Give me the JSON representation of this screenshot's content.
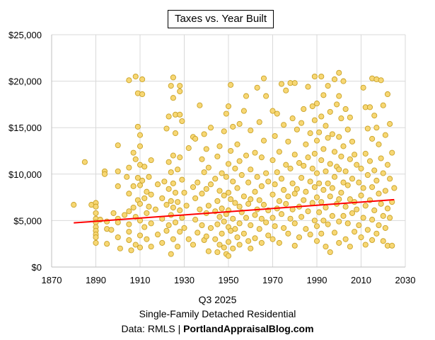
{
  "chart_data": {
    "type": "scatter",
    "title": "Taxes vs. Year Built",
    "xlabel": "",
    "ylabel": "",
    "xlim": [
      1870,
      2030
    ],
    "ylim": [
      0,
      25000
    ],
    "x_ticks": [
      "1870",
      "1890",
      "1910",
      "1930",
      "1950",
      "1970",
      "1990",
      "2010",
      "2030"
    ],
    "y_ticks": [
      "$0",
      "$5,000",
      "$10,000",
      "$15,000",
      "$20,000",
      "$25,000"
    ],
    "grid": true,
    "legend": "none",
    "marker_color": "#F7D774",
    "marker_edge": "#C9A227",
    "trendline": {
      "type": "linear",
      "color": "#FF0000",
      "x": [
        1880,
        2025
      ],
      "y": [
        4750,
        7250
      ]
    },
    "points": [
      [
        1880,
        6700
      ],
      [
        1885,
        11300
      ],
      [
        1888,
        6700
      ],
      [
        1890,
        6900
      ],
      [
        1890,
        6500
      ],
      [
        1890,
        5800
      ],
      [
        1890,
        5200
      ],
      [
        1890,
        4800
      ],
      [
        1890,
        4300
      ],
      [
        1890,
        3900
      ],
      [
        1890,
        3500
      ],
      [
        1890,
        3200
      ],
      [
        1890,
        2600
      ],
      [
        1892,
        5100
      ],
      [
        1894,
        10300
      ],
      [
        1894,
        10000
      ],
      [
        1895,
        4900
      ],
      [
        1895,
        4100
      ],
      [
        1895,
        2500
      ],
      [
        1897,
        4000
      ],
      [
        1898,
        5800
      ],
      [
        1900,
        13100
      ],
      [
        1900,
        10300
      ],
      [
        1900,
        8700
      ],
      [
        1900,
        5200
      ],
      [
        1900,
        4800
      ],
      [
        1900,
        3200
      ],
      [
        1901,
        2000
      ],
      [
        1903,
        5600
      ],
      [
        1904,
        9700
      ],
      [
        1905,
        20100
      ],
      [
        1905,
        10700
      ],
      [
        1905,
        7900
      ],
      [
        1905,
        6000
      ],
      [
        1905,
        4600
      ],
      [
        1905,
        3800
      ],
      [
        1905,
        2900
      ],
      [
        1906,
        1800
      ],
      [
        1907,
        12300
      ],
      [
        1907,
        8700
      ],
      [
        1907,
        6400
      ],
      [
        1908,
        20500
      ],
      [
        1908,
        11600
      ],
      [
        1908,
        5400
      ],
      [
        1908,
        2400
      ],
      [
        1909,
        18700
      ],
      [
        1909,
        15100
      ],
      [
        1909,
        9600
      ],
      [
        1909,
        7200
      ],
      [
        1910,
        14200
      ],
      [
        1910,
        13000
      ],
      [
        1910,
        11000
      ],
      [
        1910,
        8800
      ],
      [
        1910,
        6800
      ],
      [
        1910,
        5000
      ],
      [
        1910,
        3400
      ],
      [
        1910,
        2100
      ],
      [
        1911,
        18600
      ],
      [
        1911,
        20200
      ],
      [
        1911,
        9300
      ],
      [
        1912,
        10800
      ],
      [
        1912,
        7400
      ],
      [
        1912,
        4300
      ],
      [
        1913,
        8100
      ],
      [
        1913,
        5800
      ],
      [
        1913,
        3000
      ],
      [
        1914,
        9700
      ],
      [
        1914,
        6500
      ],
      [
        1915,
        11500
      ],
      [
        1915,
        7800
      ],
      [
        1915,
        4700
      ],
      [
        1915,
        2200
      ],
      [
        1917,
        6200
      ],
      [
        1918,
        8900
      ],
      [
        1918,
        3500
      ],
      [
        1920,
        7400
      ],
      [
        1920,
        5200
      ],
      [
        1920,
        2600
      ],
      [
        1921,
        9200
      ],
      [
        1922,
        14900
      ],
      [
        1922,
        6700
      ],
      [
        1922,
        3900
      ],
      [
        1923,
        16200
      ],
      [
        1923,
        11300
      ],
      [
        1923,
        8400
      ],
      [
        1923,
        4500
      ],
      [
        1924,
        19500
      ],
      [
        1924,
        10200
      ],
      [
        1924,
        7100
      ],
      [
        1924,
        5600
      ],
      [
        1924,
        1400
      ],
      [
        1925,
        18200
      ],
      [
        1925,
        20400
      ],
      [
        1925,
        12000
      ],
      [
        1925,
        9000
      ],
      [
        1925,
        6400
      ],
      [
        1925,
        3000
      ],
      [
        1926,
        16400
      ],
      [
        1926,
        14400
      ],
      [
        1926,
        8000
      ],
      [
        1926,
        4800
      ],
      [
        1927,
        10500
      ],
      [
        1927,
        7000
      ],
      [
        1927,
        2200
      ],
      [
        1928,
        19500
      ],
      [
        1928,
        18900
      ],
      [
        1928,
        16400
      ],
      [
        1928,
        11800
      ],
      [
        1928,
        6100
      ],
      [
        1928,
        3800
      ],
      [
        1929,
        15700
      ],
      [
        1929,
        9400
      ],
      [
        1929,
        5300
      ],
      [
        1930,
        8000
      ],
      [
        1930,
        4200
      ],
      [
        1931,
        6600
      ],
      [
        1932,
        12800
      ],
      [
        1932,
        3000
      ],
      [
        1934,
        14000
      ],
      [
        1934,
        8600
      ],
      [
        1934,
        2400
      ],
      [
        1935,
        13800
      ],
      [
        1935,
        7400
      ],
      [
        1935,
        5100
      ],
      [
        1936,
        9100
      ],
      [
        1936,
        3700
      ],
      [
        1937,
        17400
      ],
      [
        1937,
        6200
      ],
      [
        1938,
        11600
      ],
      [
        1938,
        7900
      ],
      [
        1938,
        4500
      ],
      [
        1939,
        14300
      ],
      [
        1939,
        10200
      ],
      [
        1939,
        2900
      ],
      [
        1940,
        12700
      ],
      [
        1940,
        8400
      ],
      [
        1940,
        5800
      ],
      [
        1940,
        3300
      ],
      [
        1941,
        10700
      ],
      [
        1941,
        6600
      ],
      [
        1941,
        1700
      ],
      [
        1942,
        15000
      ],
      [
        1942,
        8900
      ],
      [
        1942,
        4200
      ],
      [
        1944,
        9500
      ],
      [
        1944,
        6000
      ],
      [
        1944,
        3000
      ],
      [
        1945,
        11900
      ],
      [
        1945,
        7100
      ],
      [
        1945,
        4600
      ],
      [
        1945,
        1600
      ],
      [
        1946,
        13000
      ],
      [
        1946,
        8200
      ],
      [
        1946,
        5400
      ],
      [
        1946,
        2400
      ],
      [
        1947,
        10100
      ],
      [
        1947,
        6300
      ],
      [
        1947,
        3600
      ],
      [
        1948,
        14600
      ],
      [
        1948,
        7700
      ],
      [
        1948,
        4900
      ],
      [
        1948,
        2100
      ],
      [
        1949,
        16500
      ],
      [
        1949,
        9700
      ],
      [
        1949,
        5700
      ],
      [
        1949,
        1400
      ],
      [
        1950,
        17300
      ],
      [
        1950,
        11100
      ],
      [
        1950,
        8000
      ],
      [
        1950,
        6100
      ],
      [
        1950,
        4300
      ],
      [
        1950,
        2700
      ],
      [
        1950,
        1200
      ],
      [
        1951,
        19600
      ],
      [
        1951,
        12500
      ],
      [
        1951,
        7300
      ],
      [
        1951,
        3900
      ],
      [
        1952,
        15100
      ],
      [
        1952,
        9200
      ],
      [
        1952,
        5200
      ],
      [
        1952,
        2000
      ],
      [
        1953,
        10600
      ],
      [
        1953,
        6900
      ],
      [
        1953,
        4100
      ],
      [
        1954,
        13200
      ],
      [
        1954,
        8500
      ],
      [
        1954,
        3200
      ],
      [
        1955,
        15400
      ],
      [
        1955,
        11400
      ],
      [
        1955,
        6500
      ],
      [
        1955,
        4700
      ],
      [
        1955,
        2400
      ],
      [
        1956,
        9900
      ],
      [
        1956,
        5900
      ],
      [
        1957,
        16800
      ],
      [
        1957,
        7600
      ],
      [
        1957,
        3600
      ],
      [
        1958,
        18400
      ],
      [
        1958,
        12000
      ],
      [
        1958,
        5300
      ],
      [
        1959,
        9100
      ],
      [
        1959,
        6800
      ],
      [
        1959,
        2800
      ],
      [
        1960,
        14700
      ],
      [
        1960,
        10500
      ],
      [
        1960,
        7300
      ],
      [
        1960,
        4500
      ],
      [
        1960,
        2000
      ],
      [
        1962,
        12300
      ],
      [
        1962,
        8100
      ],
      [
        1962,
        5600
      ],
      [
        1962,
        3100
      ],
      [
        1963,
        19300
      ],
      [
        1963,
        9700
      ],
      [
        1963,
        6200
      ],
      [
        1964,
        15600
      ],
      [
        1964,
        7200
      ],
      [
        1964,
        4100
      ],
      [
        1965,
        11800
      ],
      [
        1965,
        8700
      ],
      [
        1965,
        5200
      ],
      [
        1965,
        2600
      ],
      [
        1966,
        20300
      ],
      [
        1966,
        13600
      ],
      [
        1966,
        6700
      ],
      [
        1967,
        18400
      ],
      [
        1967,
        10100
      ],
      [
        1967,
        4800
      ],
      [
        1968,
        9200
      ],
      [
        1968,
        6100
      ],
      [
        1968,
        3400
      ],
      [
        1970,
        16800
      ],
      [
        1970,
        11500
      ],
      [
        1970,
        7800
      ],
      [
        1970,
        5300
      ],
      [
        1970,
        3000
      ],
      [
        1971,
        14100
      ],
      [
        1971,
        8900
      ],
      [
        1971,
        4400
      ],
      [
        1972,
        16500
      ],
      [
        1972,
        10200
      ],
      [
        1972,
        6300
      ],
      [
        1973,
        12400
      ],
      [
        1973,
        7100
      ],
      [
        1973,
        2600
      ],
      [
        1974,
        19700
      ],
      [
        1974,
        9500
      ],
      [
        1974,
        5700
      ],
      [
        1975,
        15300
      ],
      [
        1975,
        8300
      ],
      [
        1975,
        4200
      ],
      [
        1976,
        19000
      ],
      [
        1976,
        11000
      ],
      [
        1976,
        6800
      ],
      [
        1977,
        13500
      ],
      [
        1977,
        7600
      ],
      [
        1977,
        3600
      ],
      [
        1978,
        19800
      ],
      [
        1978,
        10600
      ],
      [
        1978,
        5200
      ],
      [
        1979,
        16000
      ],
      [
        1979,
        9000
      ],
      [
        1979,
        6200
      ],
      [
        1980,
        19800
      ],
      [
        1980,
        12100
      ],
      [
        1980,
        7900
      ],
      [
        1980,
        4700
      ],
      [
        1980,
        2300
      ],
      [
        1981,
        14800
      ],
      [
        1981,
        8400
      ],
      [
        1982,
        11200
      ],
      [
        1982,
        6500
      ],
      [
        1982,
        3200
      ],
      [
        1983,
        15500
      ],
      [
        1983,
        9600
      ],
      [
        1983,
        5400
      ],
      [
        1984,
        17000
      ],
      [
        1984,
        10900
      ],
      [
        1984,
        7200
      ],
      [
        1985,
        13200
      ],
      [
        1985,
        8100
      ],
      [
        1985,
        4100
      ],
      [
        1986,
        19400
      ],
      [
        1986,
        11800
      ],
      [
        1986,
        6000
      ],
      [
        1987,
        14400
      ],
      [
        1987,
        9200
      ],
      [
        1987,
        3500
      ],
      [
        1988,
        17300
      ],
      [
        1988,
        10600
      ],
      [
        1988,
        6900
      ],
      [
        1989,
        20500
      ],
      [
        1989,
        15800
      ],
      [
        1989,
        12200
      ],
      [
        1989,
        8600
      ],
      [
        1989,
        5000
      ],
      [
        1990,
        17600
      ],
      [
        1990,
        13600
      ],
      [
        1990,
        10100
      ],
      [
        1990,
        7500
      ],
      [
        1990,
        4400
      ],
      [
        1990,
        2800
      ],
      [
        1991,
        14500
      ],
      [
        1991,
        9000
      ],
      [
        1991,
        5900
      ],
      [
        1992,
        20500
      ],
      [
        1992,
        16200
      ],
      [
        1992,
        11500
      ],
      [
        1992,
        7000
      ],
      [
        1992,
        3600
      ],
      [
        1993,
        18500
      ],
      [
        1993,
        12700
      ],
      [
        1993,
        8300
      ],
      [
        1993,
        5000
      ],
      [
        1994,
        15200
      ],
      [
        1994,
        10300
      ],
      [
        1994,
        6400
      ],
      [
        1994,
        2200
      ],
      [
        1995,
        19500
      ],
      [
        1995,
        13900
      ],
      [
        1995,
        9000
      ],
      [
        1995,
        4600
      ],
      [
        1996,
        16700
      ],
      [
        1996,
        11100
      ],
      [
        1996,
        7600
      ],
      [
        1996,
        1600
      ],
      [
        1997,
        14300
      ],
      [
        1997,
        8500
      ],
      [
        1997,
        5500
      ],
      [
        1998,
        20200
      ],
      [
        1998,
        12400
      ],
      [
        1998,
        9700
      ],
      [
        1998,
        3700
      ],
      [
        1999,
        17500
      ],
      [
        1999,
        10800
      ],
      [
        1999,
        6800
      ],
      [
        2000,
        20900
      ],
      [
        2000,
        18400
      ],
      [
        2000,
        14000
      ],
      [
        2000,
        10500
      ],
      [
        2000,
        7300
      ],
      [
        2000,
        4900
      ],
      [
        2000,
        2600
      ],
      [
        2001,
        16000
      ],
      [
        2001,
        11900
      ],
      [
        2001,
        8000
      ],
      [
        2002,
        20000
      ],
      [
        2002,
        13000
      ],
      [
        2002,
        9100
      ],
      [
        2002,
        5500
      ],
      [
        2003,
        17000
      ],
      [
        2003,
        10300
      ],
      [
        2003,
        6500
      ],
      [
        2003,
        3000
      ],
      [
        2004,
        14800
      ],
      [
        2004,
        8800
      ],
      [
        2004,
        4700
      ],
      [
        2005,
        16100
      ],
      [
        2005,
        11600
      ],
      [
        2005,
        7300
      ],
      [
        2005,
        2200
      ],
      [
        2006,
        13500
      ],
      [
        2006,
        9500
      ],
      [
        2006,
        5800
      ],
      [
        2007,
        12100
      ],
      [
        2007,
        7000
      ],
      [
        2007,
        3800
      ],
      [
        2008,
        11000
      ],
      [
        2008,
        6200
      ],
      [
        2009,
        9100
      ],
      [
        2009,
        4500
      ],
      [
        2010,
        10600
      ],
      [
        2010,
        7700
      ],
      [
        2010,
        3200
      ],
      [
        2011,
        19300
      ],
      [
        2011,
        8500
      ],
      [
        2011,
        5300
      ],
      [
        2012,
        17200
      ],
      [
        2012,
        12200
      ],
      [
        2012,
        6600
      ],
      [
        2012,
        2400
      ],
      [
        2013,
        14900
      ],
      [
        2013,
        9900
      ],
      [
        2013,
        4000
      ],
      [
        2014,
        17200
      ],
      [
        2014,
        11400
      ],
      [
        2014,
        7200
      ],
      [
        2015,
        20300
      ],
      [
        2015,
        13800
      ],
      [
        2015,
        8600
      ],
      [
        2015,
        5100
      ],
      [
        2015,
        2900
      ],
      [
        2016,
        16300
      ],
      [
        2016,
        10400
      ],
      [
        2016,
        6100
      ],
      [
        2017,
        20200
      ],
      [
        2017,
        15000
      ],
      [
        2017,
        9300
      ],
      [
        2017,
        3600
      ],
      [
        2018,
        13200
      ],
      [
        2018,
        7900
      ],
      [
        2018,
        4500
      ],
      [
        2019,
        20100
      ],
      [
        2019,
        11700
      ],
      [
        2019,
        6800
      ],
      [
        2020,
        17400
      ],
      [
        2020,
        10100
      ],
      [
        2020,
        5500
      ],
      [
        2020,
        2800
      ],
      [
        2021,
        14200
      ],
      [
        2021,
        8200
      ],
      [
        2021,
        4200
      ],
      [
        2022,
        18600
      ],
      [
        2022,
        11000
      ],
      [
        2022,
        6300
      ],
      [
        2022,
        2300
      ],
      [
        2023,
        15400
      ],
      [
        2023,
        9500
      ],
      [
        2023,
        5300
      ],
      [
        2024,
        12300
      ],
      [
        2024,
        7000
      ],
      [
        2024,
        2300
      ],
      [
        2025,
        8500
      ]
    ]
  },
  "footer": {
    "line1": "Q3 2025",
    "line2": "Single-Family Detached Residential",
    "line3_prefix": "Data: RMLS | ",
    "line3_bold": "PortlandAppraisalBlog.com"
  }
}
